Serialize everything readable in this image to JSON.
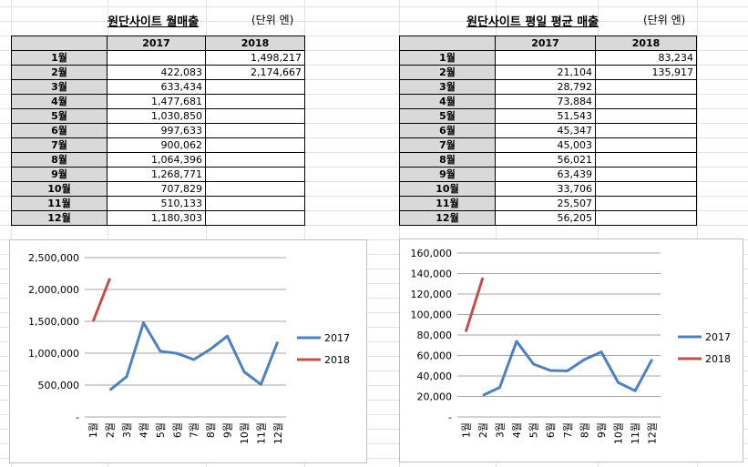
{
  "left": {
    "title": "원단사이트 월매출",
    "unit": "(단위 엔)",
    "headers": [
      "2017",
      "2018"
    ],
    "rows": [
      {
        "month": "1월",
        "v2017": "",
        "v2018": "1,498,217"
      },
      {
        "month": "2월",
        "v2017": "422,083",
        "v2018": "2,174,667"
      },
      {
        "month": "3월",
        "v2017": "633,434",
        "v2018": ""
      },
      {
        "month": "4월",
        "v2017": "1,477,681",
        "v2018": ""
      },
      {
        "month": "5월",
        "v2017": "1,030,850",
        "v2018": ""
      },
      {
        "month": "6월",
        "v2017": "997,633",
        "v2018": ""
      },
      {
        "month": "7월",
        "v2017": "900,062",
        "v2018": ""
      },
      {
        "month": "8월",
        "v2017": "1,064,396",
        "v2018": ""
      },
      {
        "month": "9월",
        "v2017": "1,268,771",
        "v2018": ""
      },
      {
        "month": "10월",
        "v2017": "707,829",
        "v2018": ""
      },
      {
        "month": "11월",
        "v2017": "510,133",
        "v2018": ""
      },
      {
        "month": "12월",
        "v2017": "1,180,303",
        "v2018": ""
      }
    ]
  },
  "right": {
    "title": "원단사이트 평일 평균 매출",
    "unit": "(단위 엔)",
    "headers": [
      "2017",
      "2018"
    ],
    "rows": [
      {
        "month": "1월",
        "v2017": "",
        "v2018": "83,234"
      },
      {
        "month": "2월",
        "v2017": "21,104",
        "v2018": "135,917"
      },
      {
        "month": "3월",
        "v2017": "28,792",
        "v2018": ""
      },
      {
        "month": "4월",
        "v2017": "73,884",
        "v2018": ""
      },
      {
        "month": "5월",
        "v2017": "51,543",
        "v2018": ""
      },
      {
        "month": "6월",
        "v2017": "45,347",
        "v2018": ""
      },
      {
        "month": "7월",
        "v2017": "45,003",
        "v2018": ""
      },
      {
        "month": "8월",
        "v2017": "56,021",
        "v2018": ""
      },
      {
        "month": "9월",
        "v2017": "63,439",
        "v2018": ""
      },
      {
        "month": "10월",
        "v2017": "33,706",
        "v2018": ""
      },
      {
        "month": "11월",
        "v2017": "25,507",
        "v2018": ""
      },
      {
        "month": "12월",
        "v2017": "56,205",
        "v2018": ""
      }
    ]
  },
  "colors": {
    "series_2017": "#4f81bd",
    "series_2018": "#c0504d",
    "gridline": "#a6a6a6",
    "sheet_grid": "#e1e1e1",
    "header_fill": "#d9d9d9"
  },
  "chart_data": [
    {
      "type": "line",
      "categories": [
        "1월",
        "2월",
        "3월",
        "4월",
        "5월",
        "6월",
        "7월",
        "8월",
        "9월",
        "10월",
        "11월",
        "12월"
      ],
      "series": [
        {
          "name": "2017",
          "values": [
            null,
            422083,
            633434,
            1477681,
            1030850,
            997633,
            900062,
            1064396,
            1268771,
            707829,
            510133,
            1180303
          ]
        },
        {
          "name": "2018",
          "values": [
            1498217,
            2174667,
            null,
            null,
            null,
            null,
            null,
            null,
            null,
            null,
            null,
            null
          ]
        }
      ],
      "ylim": [
        0,
        2500000
      ],
      "yticks": [
        {
          "value": 0,
          "label": "-"
        },
        {
          "value": 500000,
          "label": "500,000"
        },
        {
          "value": 1000000,
          "label": "1,000,000"
        },
        {
          "value": 1500000,
          "label": "1,500,000"
        },
        {
          "value": 2000000,
          "label": "2,000,000"
        },
        {
          "value": 2500000,
          "label": "2,500,000"
        }
      ],
      "grid": true,
      "legend": "right"
    },
    {
      "type": "line",
      "categories": [
        "1월",
        "2월",
        "3월",
        "4월",
        "5월",
        "6월",
        "7월",
        "8월",
        "9월",
        "10월",
        "11월",
        "12월"
      ],
      "series": [
        {
          "name": "2017",
          "values": [
            null,
            21104,
            28792,
            73884,
            51543,
            45347,
            45003,
            56021,
            63439,
            33706,
            25507,
            56205
          ]
        },
        {
          "name": "2018",
          "values": [
            83234,
            135917,
            null,
            null,
            null,
            null,
            null,
            null,
            null,
            null,
            null,
            null
          ]
        }
      ],
      "ylim": [
        0,
        160000
      ],
      "yticks": [
        {
          "value": 0,
          "label": "-"
        },
        {
          "value": 20000,
          "label": "20,000"
        },
        {
          "value": 40000,
          "label": "40,000"
        },
        {
          "value": 60000,
          "label": "60,000"
        },
        {
          "value": 80000,
          "label": "80,000"
        },
        {
          "value": 100000,
          "label": "100,000"
        },
        {
          "value": 120000,
          "label": "120,000"
        },
        {
          "value": 140000,
          "label": "140,000"
        },
        {
          "value": 160000,
          "label": "160,000"
        }
      ],
      "grid": true,
      "legend": "right"
    }
  ]
}
